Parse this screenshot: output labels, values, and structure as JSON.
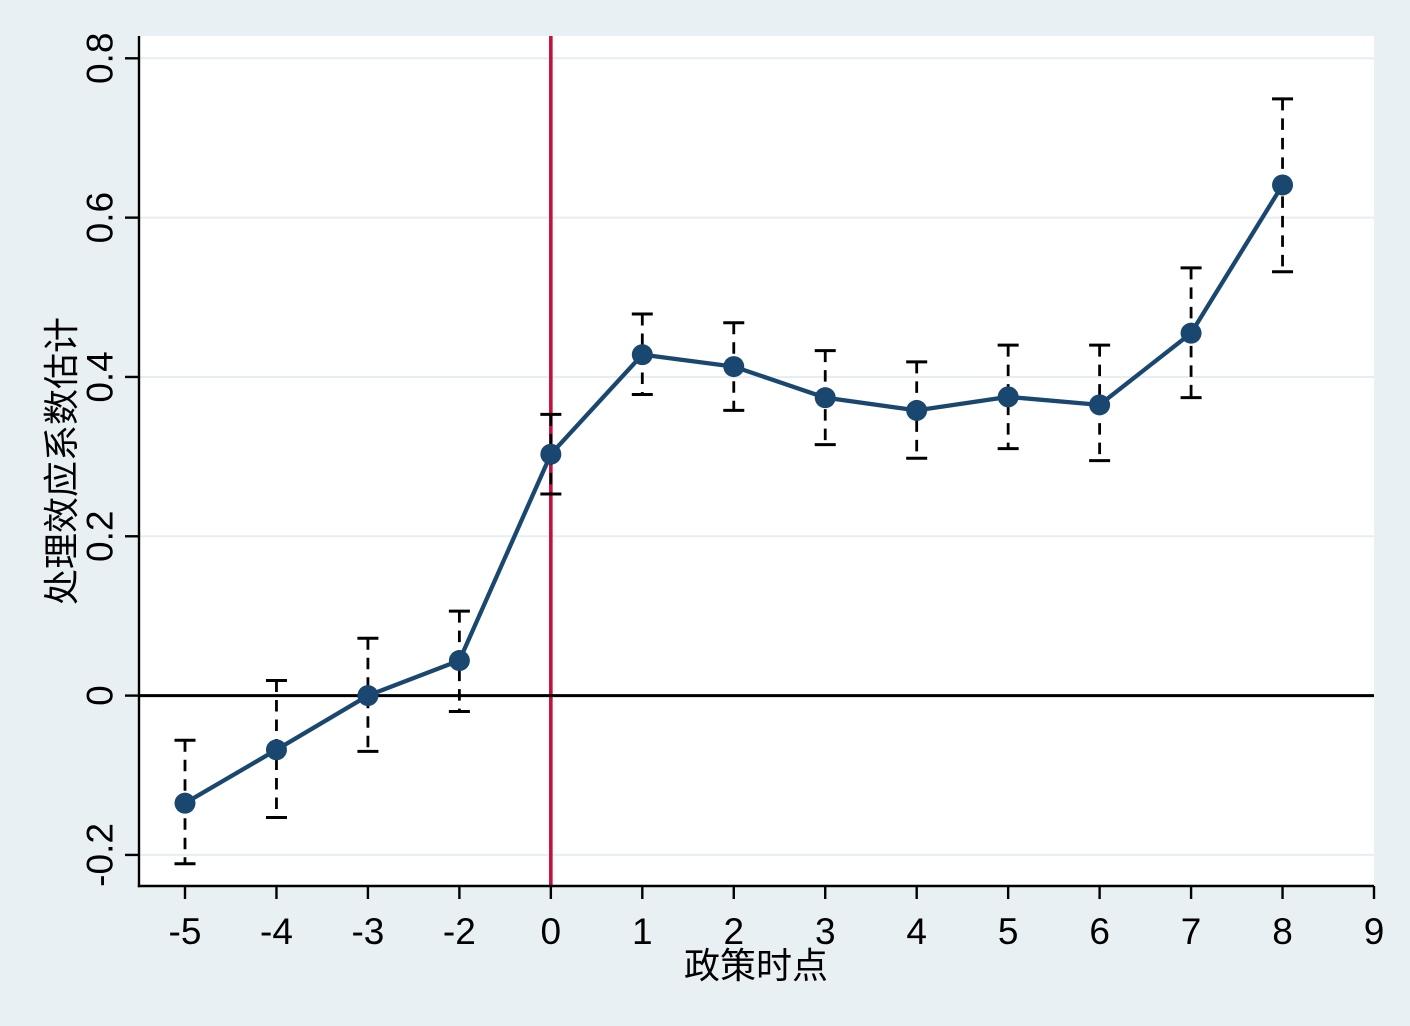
{
  "chart_data": {
    "type": "line",
    "subtype": "event-study-coefficient-plot-with-error-bars",
    "title": "",
    "xlabel": "政策时点",
    "ylabel": "处理效应系数估计",
    "x_tick_labels": [
      "-5",
      "-4",
      "-3",
      "-2",
      "0",
      "1",
      "2",
      "3",
      "4",
      "5",
      "6",
      "7",
      "8",
      "9"
    ],
    "y_ticks": [
      -0.2,
      0,
      0.2,
      0.4,
      0.6,
      0.8
    ],
    "y_tick_labels": [
      "-0.2",
      "0",
      "0.2",
      "0.4",
      "0.6",
      "0.8"
    ],
    "ylim": [
      -0.239,
      0.828
    ],
    "grid": "horizontal-only",
    "legend": "none",
    "reference_lines": {
      "vertical_at_x": "0",
      "horizontal_at_y": 0
    },
    "series": [
      {
        "name": "处理效应系数估计",
        "marker": "circle",
        "error_bars": "dashed-vertical-with-caps",
        "points": [
          {
            "x": "-5",
            "y": -0.135,
            "ci_low": -0.211,
            "ci_high": -0.056
          },
          {
            "x": "-4",
            "y": -0.068,
            "ci_low": -0.153,
            "ci_high": 0.019
          },
          {
            "x": "-3",
            "y": 0.0,
            "ci_low": -0.07,
            "ci_high": 0.072
          },
          {
            "x": "-2",
            "y": 0.044,
            "ci_low": -0.02,
            "ci_high": 0.106
          },
          {
            "x": "0",
            "y": 0.303,
            "ci_low": 0.253,
            "ci_high": 0.353
          },
          {
            "x": "1",
            "y": 0.428,
            "ci_low": 0.378,
            "ci_high": 0.479
          },
          {
            "x": "2",
            "y": 0.413,
            "ci_low": 0.358,
            "ci_high": 0.468
          },
          {
            "x": "3",
            "y": 0.374,
            "ci_low": 0.315,
            "ci_high": 0.433
          },
          {
            "x": "4",
            "y": 0.358,
            "ci_low": 0.298,
            "ci_high": 0.419
          },
          {
            "x": "5",
            "y": 0.375,
            "ci_low": 0.31,
            "ci_high": 0.44
          },
          {
            "x": "6",
            "y": 0.365,
            "ci_low": 0.295,
            "ci_high": 0.44
          },
          {
            "x": "7",
            "y": 0.455,
            "ci_low": 0.374,
            "ci_high": 0.537
          },
          {
            "x": "8",
            "y": 0.641,
            "ci_low": 0.532,
            "ci_high": 0.749
          }
        ]
      }
    ],
    "colors": {
      "background": "#e9f0f3",
      "plot_background": "#ffffff",
      "gridline": "#e6eef4",
      "axis": "#000000",
      "series": "#1a476f",
      "reference_line_vertical": "#c3103c",
      "reference_line_horizontal": "#000000",
      "error_bar": "#000000"
    }
  }
}
